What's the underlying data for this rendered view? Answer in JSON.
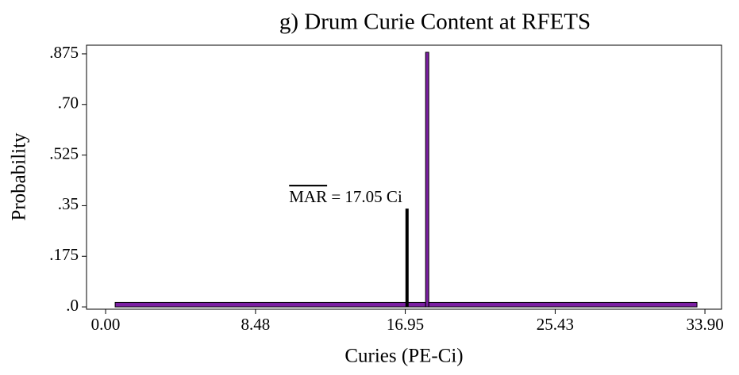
{
  "chart_data": {
    "type": "histogram",
    "title": "g) Drum Curie Content at RFETS",
    "xlabel": "Curies (PE-Ci)",
    "ylabel": "Probability",
    "bins": [
      0.54,
      18.1,
      18.28,
      33.45
    ],
    "values": [
      0.01,
      0.875,
      0.01
    ],
    "color": "#7b1fa2",
    "mean_line": {
      "label_overline": "MAR",
      "label": " = 17.05 Ci",
      "x": 17.05,
      "y": 0.34,
      "color": "#000000"
    },
    "xlim": [
      -1.08,
      34.84
    ],
    "ylim": [
      -0.008,
      0.905
    ],
    "xticks": [
      {
        "value": 0,
        "label": "0.00"
      },
      {
        "value": 8.48,
        "label": "8.48"
      },
      {
        "value": 16.95,
        "label": "16.95"
      },
      {
        "value": 25.43,
        "label": "25.43"
      },
      {
        "value": 33.9,
        "label": "33.90"
      }
    ],
    "yticks": [
      {
        "value": 0,
        "label": ".0"
      },
      {
        "value": 0.175,
        "label": ".175"
      },
      {
        "value": 0.35,
        "label": ".35"
      },
      {
        "value": 0.525,
        "label": ".525"
      },
      {
        "value": 0.7,
        "label": ".70"
      },
      {
        "value": 0.875,
        "label": ".875"
      }
    ]
  }
}
